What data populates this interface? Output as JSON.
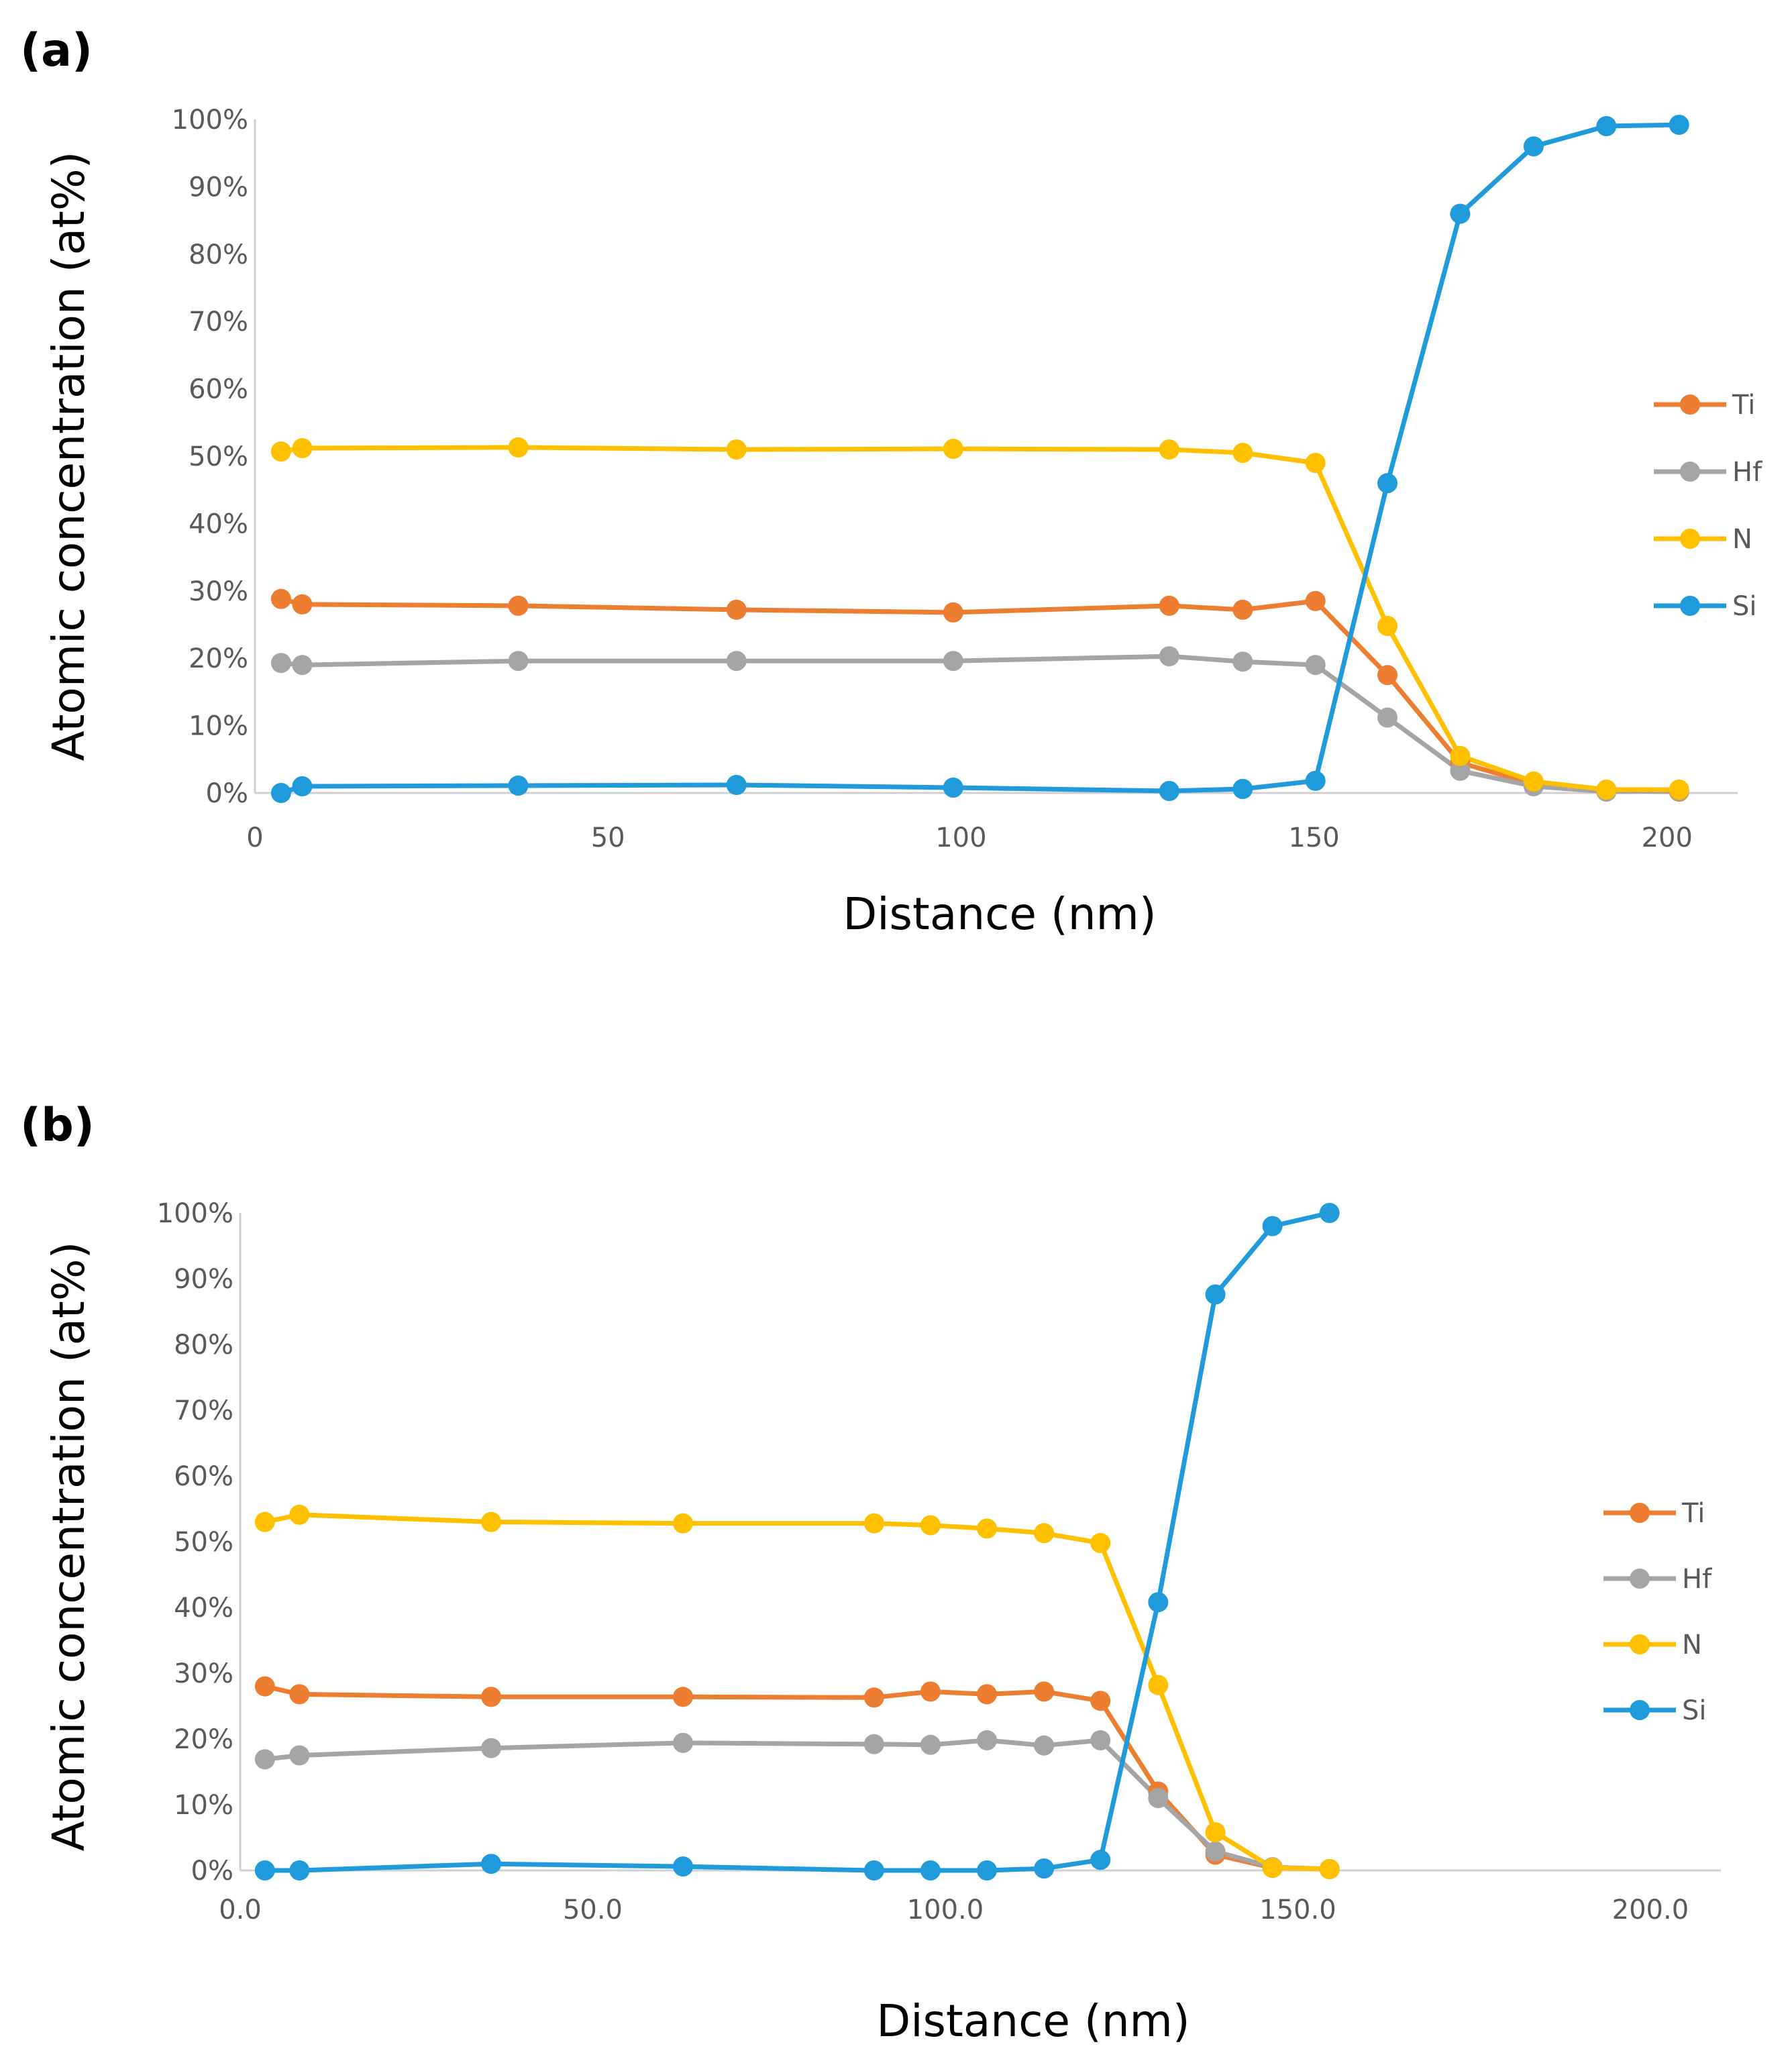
{
  "chart_data": [
    {
      "panel": "(a)",
      "type": "line",
      "xlabel": "Distance (nm)",
      "ylabel": "Atomic concentration (at%)",
      "xlim": [
        0,
        210
      ],
      "ylim": [
        0,
        100
      ],
      "x_ticks": [
        0,
        50,
        100,
        150,
        200
      ],
      "x_tick_labels": [
        "0",
        "50",
        "100",
        "150",
        "200"
      ],
      "y_ticks": [
        0,
        10,
        20,
        30,
        40,
        50,
        60,
        70,
        80,
        90,
        100
      ],
      "y_tick_labels": [
        "0%",
        "10%",
        "20%",
        "30%",
        "40%",
        "50%",
        "60%",
        "70%",
        "80%",
        "90%",
        "100%"
      ],
      "grid": false,
      "legend_position": "right",
      "x": [
        3.7,
        6.7,
        37.3,
        68.2,
        98.9,
        129.5,
        139.9,
        150.2,
        160.4,
        170.7,
        181.1,
        191.4,
        201.7
      ],
      "series": [
        {
          "name": "Ti",
          "color": "#ED7D31",
          "values": [
            28.8,
            28.0,
            27.8,
            27.2,
            26.8,
            27.8,
            27.2,
            28.5,
            17.5,
            4.5,
            1.3,
            0.3,
            0.2
          ]
        },
        {
          "name": "Hf",
          "color": "#A5A5A5",
          "values": [
            19.3,
            19.0,
            19.6,
            19.6,
            19.6,
            20.3,
            19.5,
            19.0,
            11.2,
            3.3,
            1.0,
            0.2,
            0.3
          ]
        },
        {
          "name": "N",
          "color": "#FFC000",
          "values": [
            50.7,
            51.2,
            51.3,
            51.0,
            51.1,
            51.0,
            50.5,
            49.0,
            24.8,
            5.5,
            1.7,
            0.5,
            0.5
          ]
        },
        {
          "name": "Si",
          "color": "#1F9BDB",
          "values": [
            0.0,
            1.0,
            1.1,
            1.2,
            0.8,
            0.3,
            0.6,
            1.8,
            46.0,
            86.0,
            96.0,
            99.0,
            99.2
          ]
        }
      ]
    },
    {
      "panel": "(b)",
      "type": "line",
      "xlabel": "Distance (nm)",
      "ylabel": "Atomic concentration (at%)",
      "xlim": [
        0,
        210
      ],
      "ylim": [
        0,
        100
      ],
      "x_ticks": [
        0,
        50,
        100,
        150,
        200
      ],
      "x_tick_labels": [
        "0.0",
        "50.0",
        "100.0",
        "150.0",
        "200.0"
      ],
      "y_ticks": [
        0,
        10,
        20,
        30,
        40,
        50,
        60,
        70,
        80,
        90,
        100
      ],
      "y_tick_labels": [
        "0%",
        "10%",
        "20%",
        "30%",
        "40%",
        "50%",
        "60%",
        "70%",
        "80%",
        "90%",
        "100%"
      ],
      "grid": false,
      "legend_position": "right",
      "x": [
        3.5,
        8.4,
        35.6,
        62.8,
        89.9,
        97.9,
        105.9,
        114.0,
        122.0,
        130.2,
        138.3,
        146.4,
        154.5
      ],
      "series": [
        {
          "name": "Ti",
          "color": "#ED7D31",
          "values": [
            28.0,
            26.8,
            26.4,
            26.4,
            26.3,
            27.2,
            26.8,
            27.2,
            25.8,
            12.0,
            2.4,
            0.4,
            0.2
          ]
        },
        {
          "name": "Hf",
          "color": "#A5A5A5",
          "values": [
            16.9,
            17.5,
            18.6,
            19.4,
            19.2,
            19.1,
            19.8,
            19.0,
            19.8,
            11.0,
            2.9,
            0.5,
            0.2
          ]
        },
        {
          "name": "N",
          "color": "#FFC000",
          "values": [
            53.0,
            54.1,
            53.0,
            52.8,
            52.8,
            52.5,
            52.0,
            51.3,
            49.8,
            28.2,
            5.8,
            0.4,
            0.2
          ]
        },
        {
          "name": "Si",
          "color": "#1F9BDB",
          "values": [
            0.0,
            0.0,
            1.0,
            0.6,
            0.0,
            0.0,
            0.0,
            0.3,
            1.6,
            40.8,
            87.6,
            98.0,
            100.0
          ]
        }
      ]
    }
  ]
}
